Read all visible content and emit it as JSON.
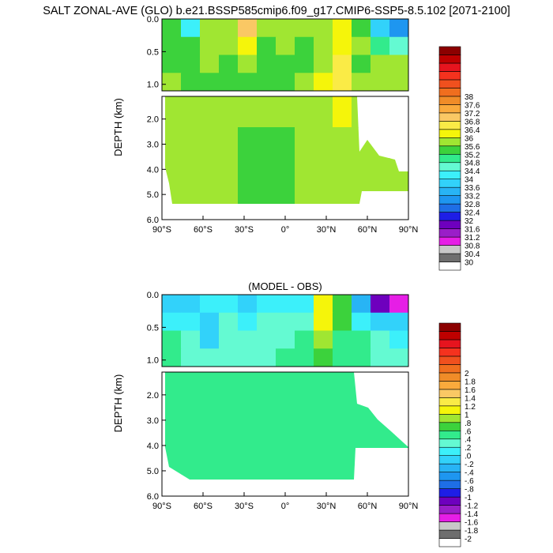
{
  "figure_title": "SALT ZONAL-AVE (GLO) b.e21.BSSP585cmip6.f09_g17.CMIP6-SSP5-8.5.102 [2071-2100]",
  "chart_data": [
    {
      "type": "heatmap",
      "title": "",
      "xlabel": "",
      "ylabel": "DEPTH (km)",
      "x_ticks": [
        "90°S",
        "60°S",
        "30°S",
        "0°",
        "30°N",
        "60°N",
        "90°N"
      ],
      "y_ticks_upper": [
        "0.0",
        "0.5",
        "1.0"
      ],
      "y_ticks_lower": [
        "2.0",
        "3.0",
        "4.0",
        "5.0",
        "6.0"
      ],
      "xlim": [
        -90,
        90
      ],
      "ylim_upper": [
        0,
        1.1
      ],
      "ylim_lower": [
        1.1,
        6.0
      ],
      "colorbar_labels": [
        "30",
        "30.4",
        "30.8",
        "31.2",
        "31.6",
        "32",
        "32.4",
        "32.8",
        "33.2",
        "33.6",
        "34",
        "34.4",
        "34.8",
        "35.2",
        "35.6",
        "36",
        "36.4",
        "36.8",
        "37.2",
        "37.6",
        "38"
      ],
      "colorbar_colors": [
        "#ffffff",
        "#6e6e6e",
        "#c8c8c8",
        "#e61ee6",
        "#9a1ec8",
        "#6e00be",
        "#1e1ee6",
        "#1e6ee6",
        "#1e96f0",
        "#28b4f5",
        "#32d2fa",
        "#3cf0fa",
        "#64fad2",
        "#32eb8c",
        "#3cd23c",
        "#a0e632",
        "#f5f50a",
        "#faeb46",
        "#fac864",
        "#faaa3c",
        "#f08c28",
        "#f06e1e",
        "#f0501e",
        "#f5321e",
        "#e6141e",
        "#be0000",
        "#8c0000"
      ],
      "field": [
        [
          34.4,
          33.5,
          35.0,
          35.0,
          36.0,
          35.0,
          34.8,
          34.8,
          34.8,
          35.2,
          34.4,
          33.0,
          32.0
        ],
        [
          34.4,
          34.4,
          35.0,
          34.8,
          35.2,
          34.6,
          34.8,
          34.6,
          34.8,
          35.5,
          34.8,
          34.0,
          33.6
        ],
        [
          34.6,
          34.4,
          34.8,
          34.6,
          34.8,
          34.6,
          34.6,
          34.6,
          34.8,
          35.6,
          34.6,
          35.0,
          34.8
        ],
        [
          35.0,
          34.6,
          34.6,
          34.6,
          34.6,
          34.6,
          34.6,
          34.8,
          35.2,
          35.8,
          34.8,
          35.0,
          34.9
        ],
        [
          35.0,
          34.8,
          34.8,
          34.8,
          34.8,
          34.8,
          34.8,
          35.0,
          35.0,
          35.2,
          35.0,
          35.0,
          34.9
        ],
        [
          35.0,
          35.0,
          34.9,
          34.8,
          34.7,
          34.7,
          34.7,
          34.9,
          35.0,
          35.1,
          35.0,
          34.9,
          34.9
        ],
        [
          34.8,
          34.9,
          34.9,
          34.8,
          34.7,
          34.7,
          34.7,
          34.9,
          35.0,
          35.0,
          34.9,
          34.9,
          34.9
        ],
        [
          34.8,
          34.9,
          34.9,
          34.8,
          34.7,
          34.7,
          34.7,
          34.9,
          35.0,
          35.0,
          34.9,
          34.9,
          34.9
        ]
      ]
    },
    {
      "type": "heatmap",
      "title": "(MODEL - OBS)",
      "xlabel": "",
      "ylabel": "DEPTH (km)",
      "x_ticks": [
        "90°S",
        "60°S",
        "30°S",
        "0°",
        "30°N",
        "60°N",
        "90°N"
      ],
      "y_ticks_upper": [
        "0.0",
        "0.5",
        "1.0"
      ],
      "y_ticks_lower": [
        "2.0",
        "3.0",
        "4.0",
        "5.0",
        "6.0"
      ],
      "xlim": [
        -90,
        90
      ],
      "ylim_upper": [
        0,
        1.1
      ],
      "ylim_lower": [
        1.1,
        6.0
      ],
      "colorbar_labels": [
        "-2",
        "-1.8",
        "-1.6",
        "-1.4",
        "-1.2",
        "-1",
        "-.8",
        "-.6",
        "-.4",
        "-.2",
        ".0",
        ".2",
        ".4",
        ".6",
        ".8",
        "1",
        "1.2",
        "1.4",
        "1.6",
        "1.8",
        "2"
      ],
      "colorbar_colors": [
        "#ffffff",
        "#6e6e6e",
        "#c8c8c8",
        "#e61ee6",
        "#9a1ec8",
        "#6e00be",
        "#1e1ee6",
        "#1e6ee6",
        "#1e96f0",
        "#28b4f5",
        "#32d2fa",
        "#3cf0fa",
        "#64fad2",
        "#32eb8c",
        "#3cd23c",
        "#a0e632",
        "#f5f50a",
        "#faeb46",
        "#fac864",
        "#faaa3c",
        "#f08c28",
        "#f06e1e",
        "#f0501e",
        "#f5321e",
        "#e6141e",
        "#be0000",
        "#8c0000"
      ],
      "field": [
        [
          -0.5,
          -0.6,
          -0.4,
          -0.3,
          -0.5,
          -0.3,
          -0.3,
          -0.3,
          0.6,
          0.2,
          -0.8,
          -1.5,
          -2.0
        ],
        [
          -0.3,
          -0.4,
          -0.6,
          -0.2,
          -0.3,
          -0.2,
          -0.2,
          -0.1,
          0.6,
          0.3,
          -0.3,
          -0.6,
          -0.5
        ],
        [
          0.1,
          -0.2,
          -0.5,
          -0.2,
          -0.2,
          -0.2,
          -0.1,
          0.1,
          0.4,
          0.1,
          0.1,
          -0.2,
          -0.3
        ],
        [
          0.1,
          -0.1,
          -0.2,
          -0.1,
          -0.1,
          -0.1,
          0.1,
          0.1,
          0.3,
          0.1,
          0.1,
          -0.1,
          -0.1
        ],
        [
          0.1,
          0.1,
          0.1,
          0.1,
          0.1,
          0.1,
          0.1,
          0.1,
          0.1,
          0.1,
          0.1,
          0.1,
          0.1
        ],
        [
          0.1,
          0.1,
          0.1,
          0.1,
          0.1,
          0.1,
          0.1,
          0.1,
          0.1,
          0.1,
          0.1,
          0.1,
          0.1
        ],
        [
          0.1,
          0.1,
          0.1,
          0.1,
          0.1,
          0.1,
          0.1,
          0.1,
          0.1,
          0.1,
          0.1,
          0.1,
          0.1
        ],
        [
          0.1,
          0.1,
          0.1,
          0.1,
          0.1,
          0.1,
          0.1,
          0.1,
          0.1,
          0.1,
          0.1,
          0.1,
          0.1
        ]
      ]
    }
  ]
}
